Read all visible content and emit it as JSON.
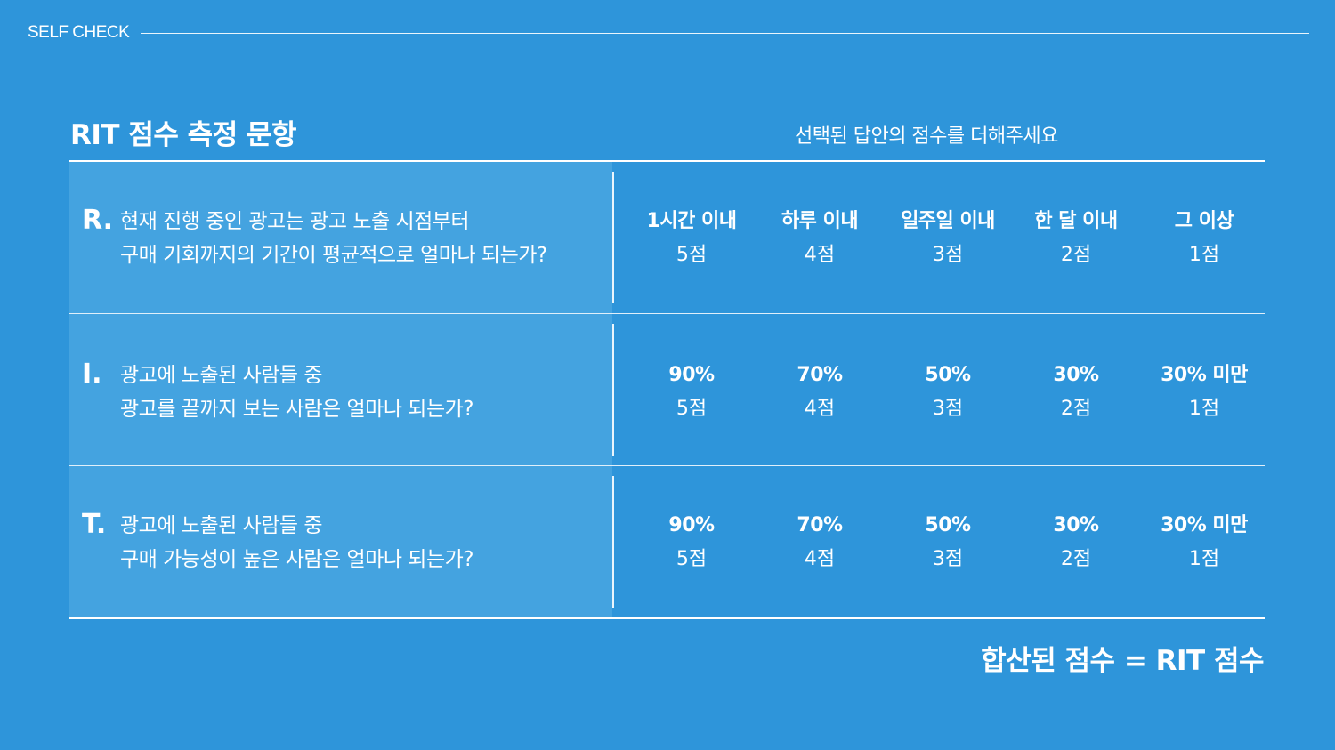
{
  "header": {
    "label": "SELF CHECK"
  },
  "title": "RIT 점수 측정 문항",
  "instruction": "선택된 답안의 점수를 더해주세요",
  "questions": [
    {
      "letter": "R.",
      "line1": "현재 진행 중인 광고는 광고 노출 시점부터",
      "line2": "구매 기회까지의 기간이 평균적으로 얼마나 되는가?",
      "options": [
        {
          "label": "1시간 이내",
          "score": "5점"
        },
        {
          "label": "하루 이내",
          "score": "4점"
        },
        {
          "label": "일주일 이내",
          "score": "3점"
        },
        {
          "label": "한 달 이내",
          "score": "2점"
        },
        {
          "label": "그 이상",
          "score": "1점"
        }
      ]
    },
    {
      "letter": "I.",
      "line1": "광고에 노출된 사람들 중",
      "line2": "광고를 끝까지 보는 사람은 얼마나 되는가?",
      "options": [
        {
          "label": "90%",
          "score": "5점"
        },
        {
          "label": "70%",
          "score": "4점"
        },
        {
          "label": "50%",
          "score": "3점"
        },
        {
          "label": "30%",
          "score": "2점"
        },
        {
          "label": "30% 미만",
          "score": "1점"
        }
      ]
    },
    {
      "letter": "T.",
      "line1": "광고에 노출된 사람들 중",
      "line2": "구매 가능성이 높은 사람은 얼마나 되는가?",
      "options": [
        {
          "label": "90%",
          "score": "5점"
        },
        {
          "label": "70%",
          "score": "4점"
        },
        {
          "label": "50%",
          "score": "3점"
        },
        {
          "label": "30%",
          "score": "2점"
        },
        {
          "label": "30% 미만",
          "score": "1점"
        }
      ]
    }
  ],
  "total": "합산된 점수 = RIT 점수",
  "colors": {
    "background": "#2e95da",
    "question_cell": "#44a3e0",
    "text": "#ffffff"
  }
}
